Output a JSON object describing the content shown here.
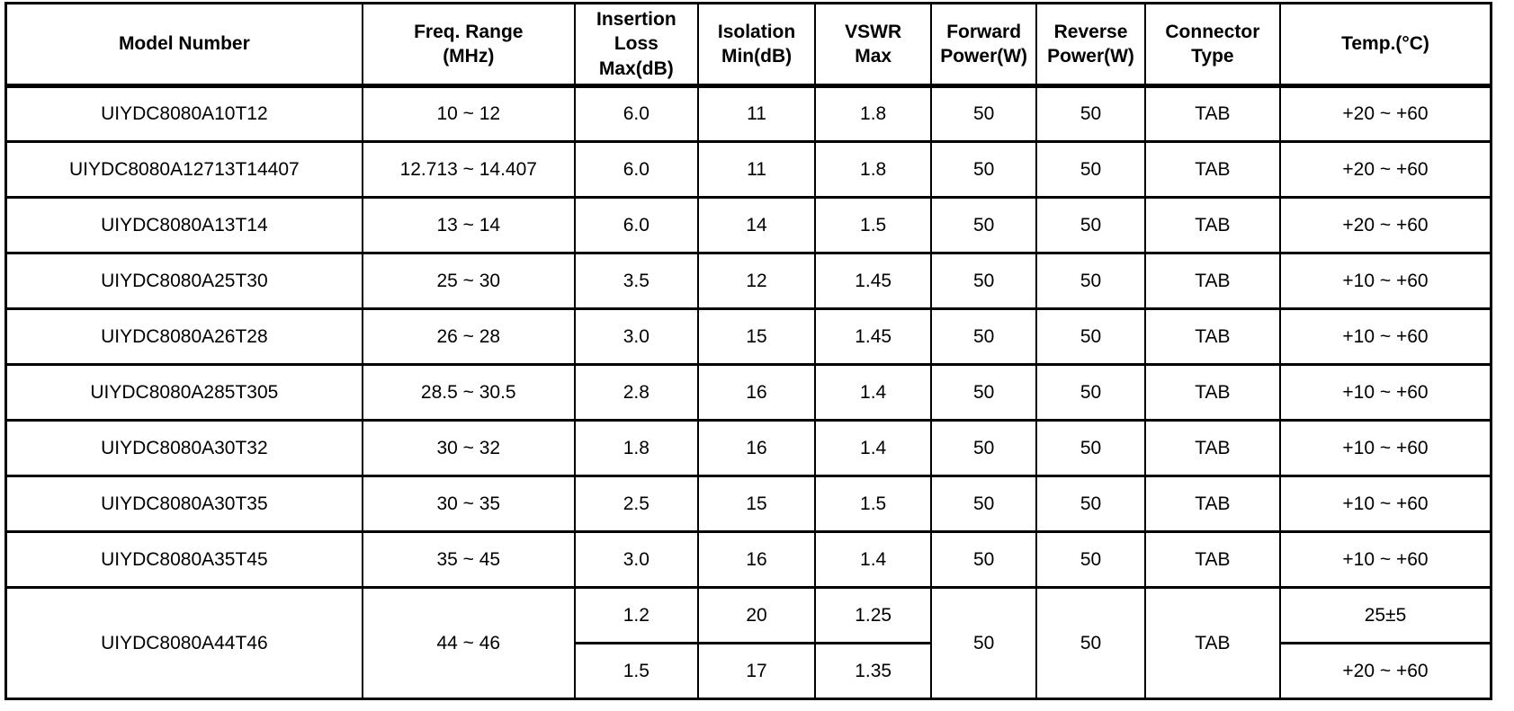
{
  "colors": {
    "border": "#000000",
    "text": "#000000",
    "background": "#ffffff"
  },
  "table": {
    "columns": [
      {
        "id": "model-number",
        "label": "Model Number"
      },
      {
        "id": "freq-range",
        "label": "Freq. Range\n(MHz)"
      },
      {
        "id": "insertion-loss",
        "label": "Insertion\nLoss\nMax(dB)"
      },
      {
        "id": "isolation",
        "label": "Isolation\nMin(dB)"
      },
      {
        "id": "vswr",
        "label": "VSWR\nMax"
      },
      {
        "id": "forward-power",
        "label": "Forward\nPower(W)"
      },
      {
        "id": "reverse-power",
        "label": "Reverse\nPower(W)"
      },
      {
        "id": "connector-type",
        "label": "Connector\nType"
      },
      {
        "id": "temperature",
        "label": "Temp.(°C)"
      }
    ],
    "body_rows": [
      {
        "cells": [
          {
            "t": "UIYDC8080A10T12"
          },
          {
            "t": "10 ~ 12"
          },
          {
            "t": "6.0"
          },
          {
            "t": "11"
          },
          {
            "t": "1.8"
          },
          {
            "t": "50"
          },
          {
            "t": "50"
          },
          {
            "t": "TAB"
          },
          {
            "t": "+20 ~ +60"
          }
        ]
      },
      {
        "cells": [
          {
            "t": "UIYDC8080A12713T14407"
          },
          {
            "t": "12.713 ~ 14.407"
          },
          {
            "t": "6.0"
          },
          {
            "t": "11"
          },
          {
            "t": "1.8"
          },
          {
            "t": "50"
          },
          {
            "t": "50"
          },
          {
            "t": "TAB"
          },
          {
            "t": "+20 ~ +60"
          }
        ]
      },
      {
        "cells": [
          {
            "t": "UIYDC8080A13T14"
          },
          {
            "t": "13 ~ 14"
          },
          {
            "t": "6.0"
          },
          {
            "t": "14"
          },
          {
            "t": "1.5"
          },
          {
            "t": "50"
          },
          {
            "t": "50"
          },
          {
            "t": "TAB"
          },
          {
            "t": "+20 ~ +60"
          }
        ]
      },
      {
        "cells": [
          {
            "t": "UIYDC8080A25T30"
          },
          {
            "t": "25 ~ 30"
          },
          {
            "t": "3.5"
          },
          {
            "t": "12"
          },
          {
            "t": "1.45"
          },
          {
            "t": "50"
          },
          {
            "t": "50"
          },
          {
            "t": "TAB"
          },
          {
            "t": "+10 ~ +60"
          }
        ]
      },
      {
        "cells": [
          {
            "t": "UIYDC8080A26T28"
          },
          {
            "t": "26 ~ 28"
          },
          {
            "t": "3.0"
          },
          {
            "t": "15"
          },
          {
            "t": "1.45"
          },
          {
            "t": "50"
          },
          {
            "t": "50"
          },
          {
            "t": "TAB"
          },
          {
            "t": "+10 ~ +60"
          }
        ]
      },
      {
        "cells": [
          {
            "t": "UIYDC8080A285T305"
          },
          {
            "t": "28.5 ~ 30.5"
          },
          {
            "t": "2.8"
          },
          {
            "t": "16"
          },
          {
            "t": "1.4"
          },
          {
            "t": "50"
          },
          {
            "t": "50"
          },
          {
            "t": "TAB"
          },
          {
            "t": "+10 ~ +60"
          }
        ]
      },
      {
        "cells": [
          {
            "t": "UIYDC8080A30T32"
          },
          {
            "t": "30 ~ 32"
          },
          {
            "t": "1.8"
          },
          {
            "t": "16"
          },
          {
            "t": "1.4"
          },
          {
            "t": "50"
          },
          {
            "t": "50"
          },
          {
            "t": "TAB"
          },
          {
            "t": "+10 ~ +60"
          }
        ]
      },
      {
        "cells": [
          {
            "t": "UIYDC8080A30T35"
          },
          {
            "t": "30 ~ 35"
          },
          {
            "t": "2.5"
          },
          {
            "t": "15"
          },
          {
            "t": "1.5"
          },
          {
            "t": "50"
          },
          {
            "t": "50"
          },
          {
            "t": "TAB"
          },
          {
            "t": "+10 ~ +60"
          }
        ]
      },
      {
        "cells": [
          {
            "t": "UIYDC8080A35T45"
          },
          {
            "t": "35 ~ 45"
          },
          {
            "t": "3.0"
          },
          {
            "t": "16"
          },
          {
            "t": "1.4"
          },
          {
            "t": "50"
          },
          {
            "t": "50"
          },
          {
            "t": "TAB"
          },
          {
            "t": "+10 ~ +60"
          }
        ]
      },
      {
        "cells": [
          {
            "t": "UIYDC8080A44T46",
            "rowspan": 2
          },
          {
            "t": "44 ~ 46",
            "rowspan": 2
          },
          {
            "t": "1.2"
          },
          {
            "t": "20"
          },
          {
            "t": "1.25"
          },
          {
            "t": "50",
            "rowspan": 2
          },
          {
            "t": "50",
            "rowspan": 2
          },
          {
            "t": "TAB",
            "rowspan": 2
          },
          {
            "t": "25±5"
          }
        ]
      },
      {
        "cells": [
          {
            "col": "insertion-loss",
            "t": "1.5"
          },
          {
            "col": "isolation",
            "t": "17"
          },
          {
            "col": "vswr",
            "t": "1.35"
          },
          {
            "col": "temperature",
            "t": "+20 ~ +60"
          }
        ]
      }
    ]
  }
}
